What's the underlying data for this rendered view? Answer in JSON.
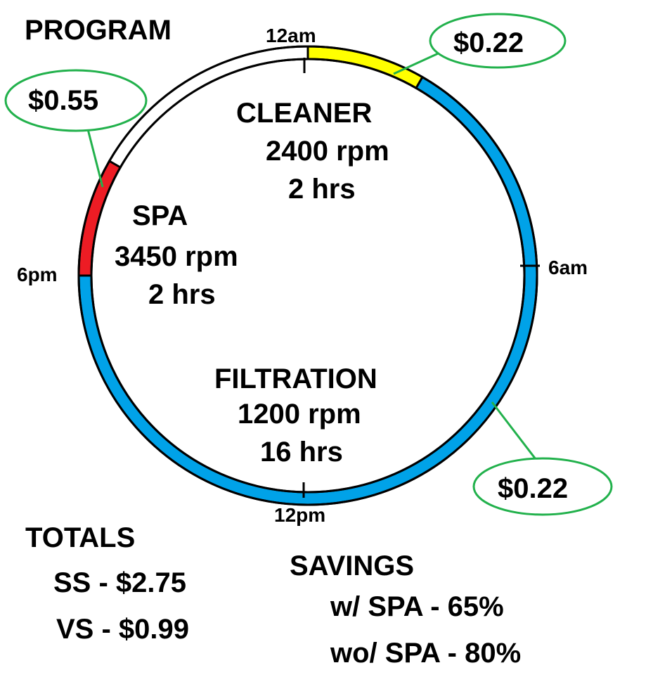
{
  "title": "PROGRAM",
  "time_labels": {
    "midnight": "12am",
    "morning": "6am",
    "noon": "12pm",
    "evening": "6pm"
  },
  "segments": {
    "cleaner": {
      "name": "CLEANER",
      "speed": "2400 rpm",
      "duration": "2 hrs",
      "color": "#ffff00"
    },
    "spa": {
      "name": "SPA",
      "speed": "3450 rpm",
      "duration": "2 hrs",
      "color": "#ed1c24"
    },
    "filtration": {
      "name": "FILTRATION",
      "speed": "1200 rpm",
      "duration": "16 hrs",
      "color": "#00a2e8"
    },
    "idle_color": "#ffffff"
  },
  "callouts": {
    "cleaner_cost": "$0.22",
    "spa_cost": "$0.55",
    "filtration_cost": "$0.22",
    "border_color": "#22b14c"
  },
  "totals": {
    "heading": "TOTALS",
    "ss": "SS - $2.75",
    "vs": "VS - $0.99"
  },
  "savings": {
    "heading": "SAVINGS",
    "with_spa": "w/ SPA - 65%",
    "without_spa": "wo/ SPA - 80%"
  }
}
